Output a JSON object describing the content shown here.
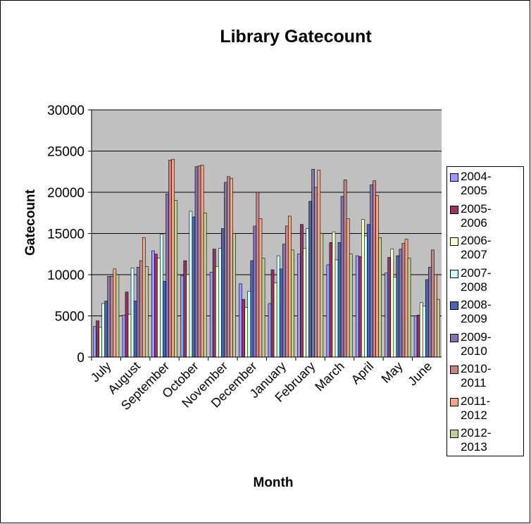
{
  "chart_data": {
    "type": "bar",
    "title": "Library Gatecount",
    "x_label": "Month",
    "y_label": "Gatecount",
    "categories": [
      "July",
      "August",
      "September",
      "October",
      "November",
      "December",
      "January",
      "February",
      "March",
      "April",
      "May",
      "June"
    ],
    "series": [
      {
        "name": "2004-2005",
        "color": "#9999ff",
        "values": [
          3700,
          5100,
          12900,
          9900,
          10300,
          8900,
          6500,
          12500,
          11200,
          12300,
          10200,
          5000
        ]
      },
      {
        "name": "2005-2006",
        "color": "#993366",
        "values": [
          4400,
          7900,
          12500,
          11700,
          13100,
          7000,
          10600,
          16100,
          13900,
          12200,
          12100,
          5100
        ]
      },
      {
        "name": "2006-2007",
        "color": "#ffffcc",
        "values": [
          3600,
          5200,
          12000,
          10000,
          11000,
          6000,
          9000,
          13200,
          15200,
          16700,
          13100,
          6600
        ]
      },
      {
        "name": "2007-2008",
        "color": "#ccffff",
        "values": [
          6500,
          10800,
          14900,
          17700,
          13200,
          8000,
          12300,
          15600,
          11800,
          14700,
          9700,
          6200
        ]
      },
      {
        "name": "2008-2009",
        "color": "#4a66b0",
        "values": [
          6800,
          6800,
          9200,
          17000,
          15600,
          11700,
          10700,
          18900,
          13900,
          16100,
          12300,
          9400
        ]
      },
      {
        "name": "2009-2010",
        "color": "#8873b0",
        "values": [
          9800,
          10900,
          19800,
          23100,
          21200,
          15900,
          13700,
          22800,
          19500,
          20900,
          13100,
          10900
        ]
      },
      {
        "name": "2010-2011",
        "color": "#c58585",
        "values": [
          9800,
          11700,
          23900,
          23200,
          21900,
          20000,
          15900,
          20600,
          21500,
          21400,
          13800,
          13000
        ]
      },
      {
        "name": "2011-2012",
        "color": "#f2a886",
        "values": [
          10700,
          14500,
          24000,
          23300,
          21700,
          16800,
          17100,
          22700,
          16800,
          19600,
          14300,
          10000
        ]
      },
      {
        "name": "2012-2013",
        "color": "#bcd09a",
        "values": [
          10000,
          11000,
          19000,
          17500,
          15000,
          12000,
          13000,
          15000,
          12500,
          14500,
          12000,
          7000
        ]
      }
    ],
    "ylim": [
      0,
      30000
    ],
    "yticks": [
      0,
      5000,
      10000,
      15000,
      20000,
      25000,
      30000
    ],
    "grid": true,
    "legend": "right"
  }
}
